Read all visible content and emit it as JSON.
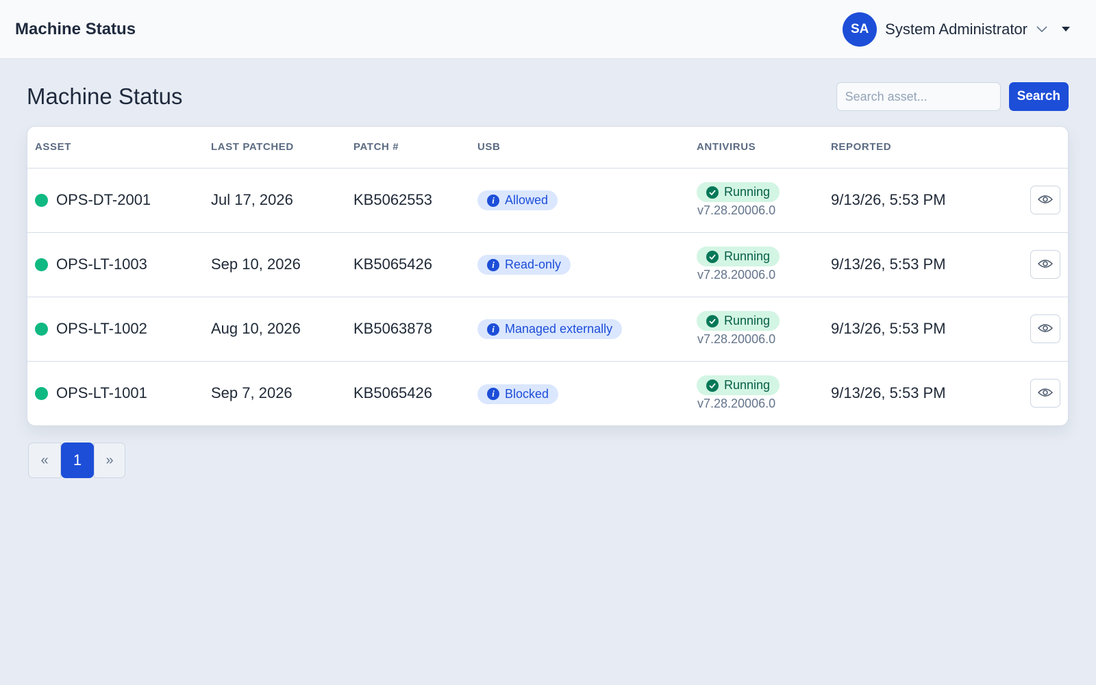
{
  "header": {
    "title": "Machine Status",
    "user": {
      "initials": "SA",
      "name": "System Administrator"
    }
  },
  "page": {
    "title": "Machine Status",
    "search": {
      "placeholder": "Search asset...",
      "value": "",
      "button_label": "Search"
    }
  },
  "table": {
    "columns": [
      "ASSET",
      "LAST PATCHED",
      "PATCH #",
      "USB",
      "ANTIVIRUS",
      "REPORTED"
    ],
    "rows": [
      {
        "asset": "OPS-DT-2001",
        "status": "online",
        "last_patched": "Jul 17, 2026",
        "patch": "KB5062553",
        "usb": "Allowed",
        "antivirus_status": "Running",
        "antivirus_version": "v7.28.20006.0",
        "reported": "9/13/26, 5:53 PM"
      },
      {
        "asset": "OPS-LT-1003",
        "status": "online",
        "last_patched": "Sep 10, 2026",
        "patch": "KB5065426",
        "usb": "Read-only",
        "antivirus_status": "Running",
        "antivirus_version": "v7.28.20006.0",
        "reported": "9/13/26, 5:53 PM"
      },
      {
        "asset": "OPS-LT-1002",
        "status": "online",
        "last_patched": "Aug 10, 2026",
        "patch": "KB5063878",
        "usb": "Managed externally",
        "antivirus_status": "Running",
        "antivirus_version": "v7.28.20006.0",
        "reported": "9/13/26, 5:53 PM"
      },
      {
        "asset": "OPS-LT-1001",
        "status": "online",
        "last_patched": "Sep 7, 2026",
        "patch": "KB5065426",
        "usb": "Blocked",
        "antivirus_status": "Running",
        "antivirus_version": "v7.28.20006.0",
        "reported": "9/13/26, 5:53 PM"
      }
    ]
  },
  "pagination": {
    "prev": "«",
    "current": "1",
    "next": "»"
  },
  "icons": {
    "status": "status-dot",
    "usb": "info-icon",
    "antivirus": "check-circle-icon",
    "view": "eye-icon",
    "user_menu": "chevron-down-icon",
    "menu_caret": "caret-down-icon"
  },
  "colors": {
    "accent": "#1d4ed8",
    "online": "#10b981",
    "usb_badge_bg": "#dbe7fe",
    "av_badge_bg": "#d3f5e4",
    "av_badge_text": "#065f46",
    "background": "#e7ecf4"
  }
}
